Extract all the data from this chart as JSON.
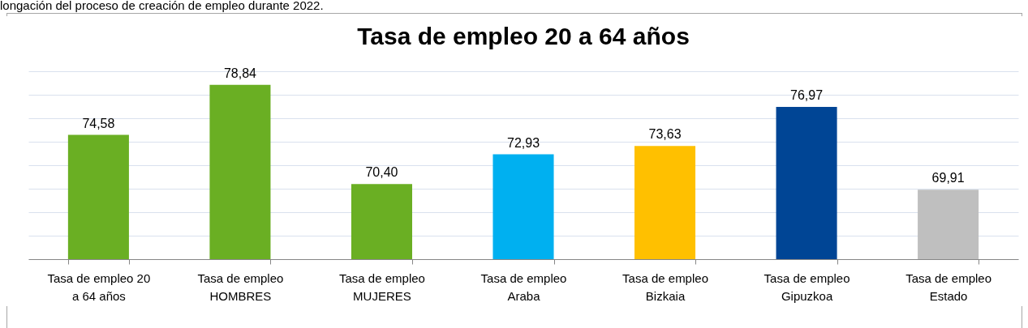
{
  "chart_data": {
    "type": "bar",
    "title": "Tasa de empleo 20 a 64 años",
    "annotations": [
      "longación del proceso de creación de empleo durante 2022."
    ],
    "categories": [
      "Tasa de empleo 20 a 64 años",
      "Tasa de empleo HOMBRES",
      "Tasa de empleo MUJERES",
      "Tasa de empleo Araba",
      "Tasa de empleo Bizkaia",
      "Tasa de empleo Gipuzkoa",
      "Tasa de empleo Estado"
    ],
    "values": [
      74.58,
      78.84,
      70.4,
      72.93,
      73.63,
      76.97,
      69.91
    ],
    "value_labels": [
      "74,58",
      "78,84",
      "70,40",
      "72,93",
      "73,63",
      "76,97",
      "69,91"
    ],
    "colors": [
      "#6aaf23",
      "#6aaf23",
      "#6aaf23",
      "#00b0f0",
      "#ffc000",
      "#004595",
      "#bfbfbf"
    ],
    "ylim": [
      64,
      80
    ],
    "grid": "y",
    "tick_labels": "x"
  }
}
